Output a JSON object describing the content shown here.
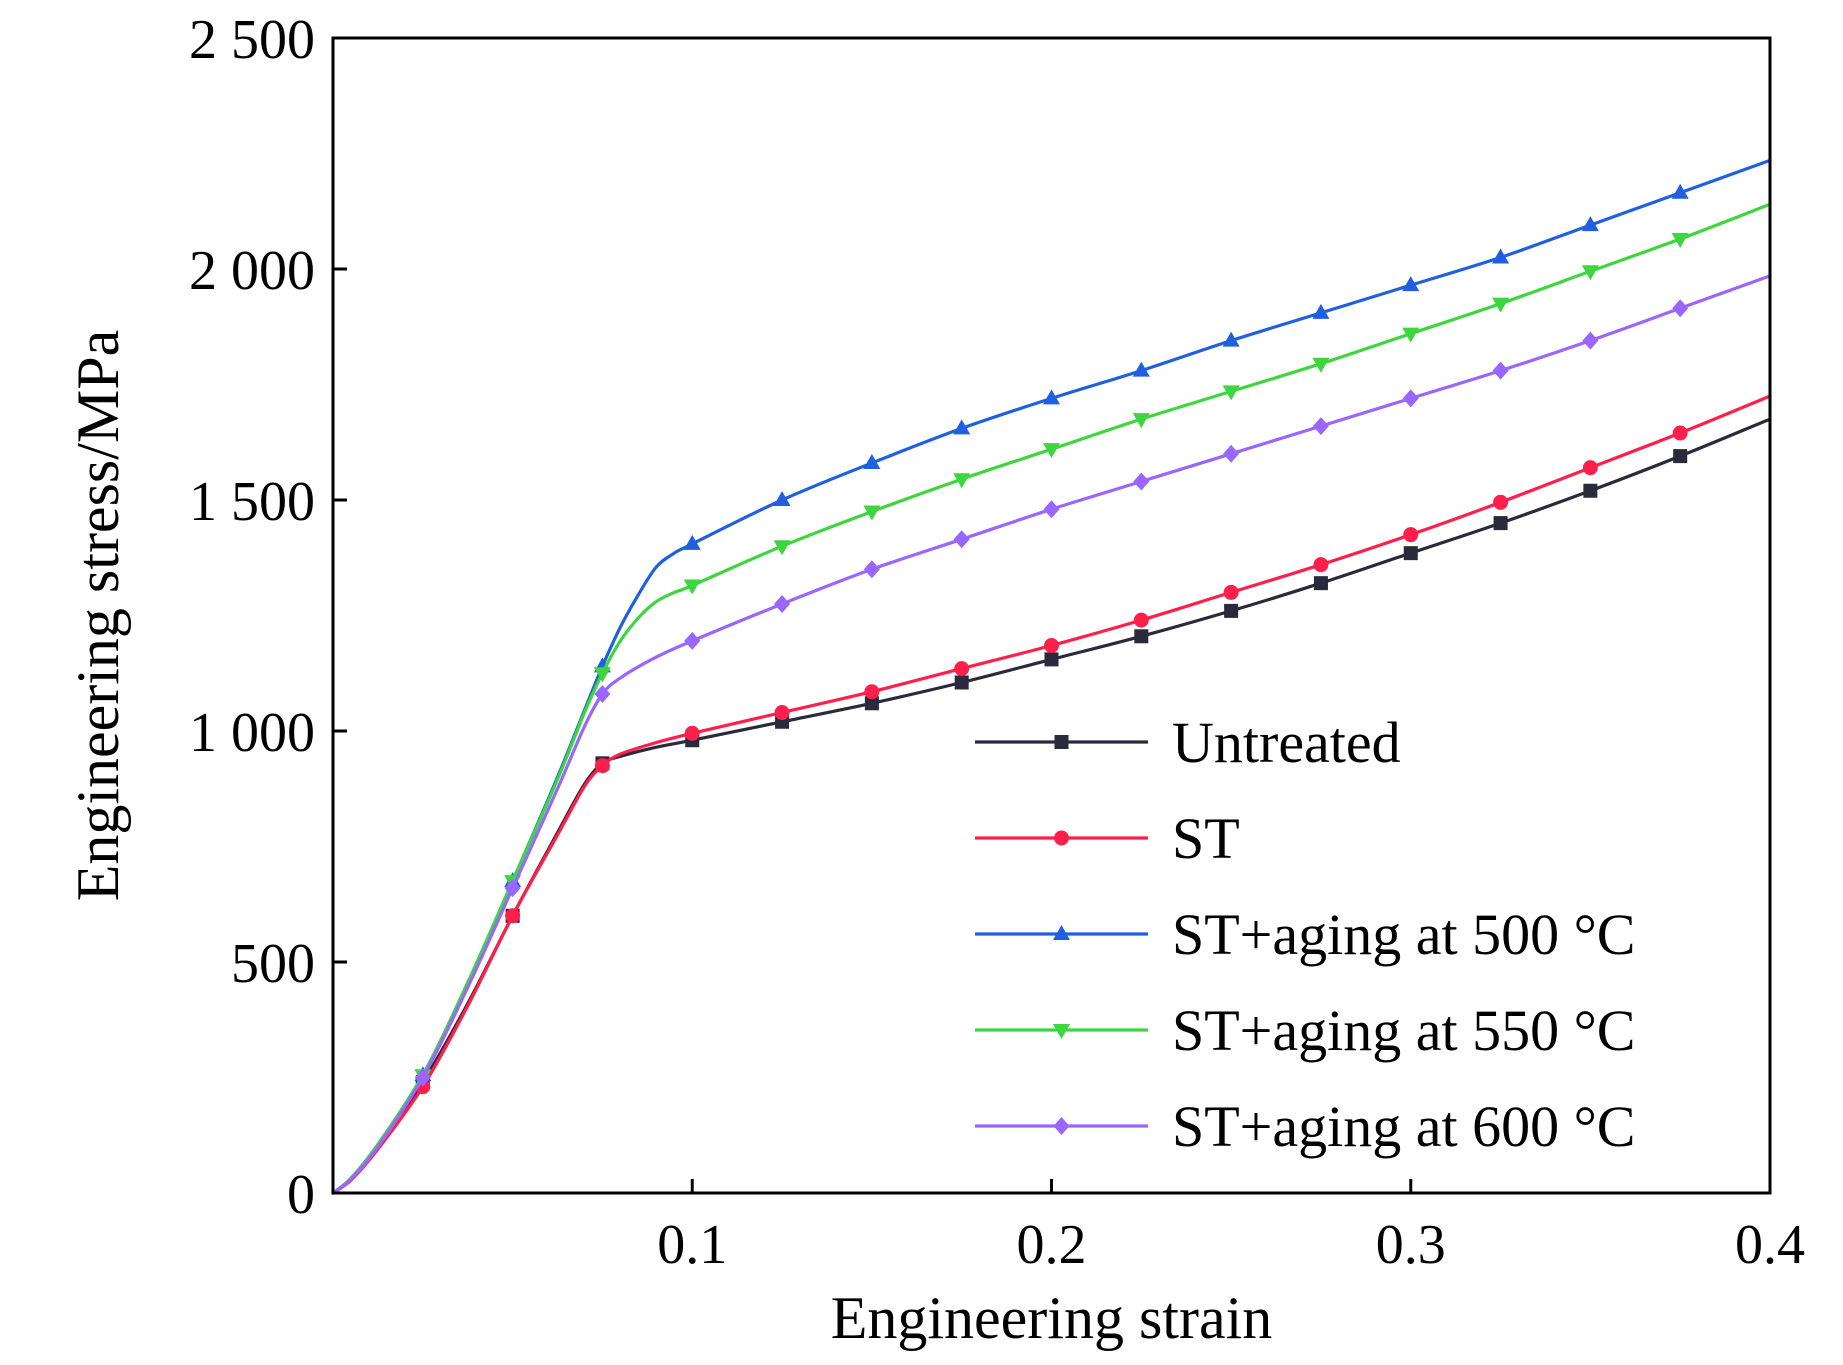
{
  "chart_data": {
    "type": "line",
    "title": "",
    "xlabel": "Engineering strain",
    "ylabel": "Engineering stress/MPa",
    "xlim": [
      0,
      0.4
    ],
    "ylim": [
      0,
      2500
    ],
    "xticks": [
      0.1,
      0.2,
      0.3,
      0.4
    ],
    "xtick_labels": [
      "0.1",
      "0.2",
      "0.3",
      "0.4"
    ],
    "yticks": [
      0,
      500,
      1000,
      1500,
      2000,
      2500
    ],
    "ytick_labels": [
      "0",
      "500",
      "1 000",
      "1 500",
      "2 000",
      "2 500"
    ],
    "grid": false,
    "legend_position": "bottom-right",
    "series": [
      {
        "name": "Untreated",
        "color": "#2a2a3c",
        "marker": "square",
        "curve": [
          [
            0,
            0
          ],
          [
            0.005,
            30
          ],
          [
            0.0125,
            100
          ],
          [
            0.025,
            240
          ],
          [
            0.0375,
            410
          ],
          [
            0.05,
            600
          ],
          [
            0.0625,
            780
          ],
          [
            0.07,
            885
          ],
          [
            0.075,
            930
          ],
          [
            0.08,
            945
          ],
          [
            0.09,
            965
          ],
          [
            0.1,
            980
          ],
          [
            0.125,
            1020
          ],
          [
            0.15,
            1060
          ],
          [
            0.175,
            1105
          ],
          [
            0.2,
            1155
          ],
          [
            0.225,
            1205
          ],
          [
            0.25,
            1260
          ],
          [
            0.275,
            1320
          ],
          [
            0.3,
            1385
          ],
          [
            0.325,
            1450
          ],
          [
            0.35,
            1520
          ],
          [
            0.375,
            1595
          ],
          [
            0.4,
            1675
          ]
        ],
        "markers": [
          [
            0.025,
            240
          ],
          [
            0.05,
            600
          ],
          [
            0.075,
            930
          ],
          [
            0.1,
            980
          ],
          [
            0.125,
            1020
          ],
          [
            0.15,
            1060
          ],
          [
            0.175,
            1105
          ],
          [
            0.2,
            1155
          ],
          [
            0.225,
            1205
          ],
          [
            0.25,
            1260
          ],
          [
            0.275,
            1320
          ],
          [
            0.3,
            1385
          ],
          [
            0.325,
            1450
          ],
          [
            0.35,
            1520
          ],
          [
            0.375,
            1595
          ]
        ]
      },
      {
        "name": "ST",
        "color": "#ff1f4b",
        "marker": "circle",
        "curve": [
          [
            0,
            0
          ],
          [
            0.005,
            28
          ],
          [
            0.0125,
            95
          ],
          [
            0.025,
            230
          ],
          [
            0.0375,
            405
          ],
          [
            0.05,
            600
          ],
          [
            0.0625,
            775
          ],
          [
            0.07,
            880
          ],
          [
            0.075,
            925
          ],
          [
            0.08,
            950
          ],
          [
            0.09,
            975
          ],
          [
            0.1,
            995
          ],
          [
            0.125,
            1040
          ],
          [
            0.15,
            1085
          ],
          [
            0.175,
            1135
          ],
          [
            0.2,
            1185
          ],
          [
            0.225,
            1240
          ],
          [
            0.25,
            1300
          ],
          [
            0.275,
            1360
          ],
          [
            0.3,
            1425
          ],
          [
            0.325,
            1495
          ],
          [
            0.35,
            1570
          ],
          [
            0.375,
            1645
          ],
          [
            0.4,
            1725
          ]
        ],
        "markers": [
          [
            0.025,
            230
          ],
          [
            0.05,
            600
          ],
          [
            0.075,
            925
          ],
          [
            0.1,
            995
          ],
          [
            0.125,
            1040
          ],
          [
            0.15,
            1085
          ],
          [
            0.175,
            1135
          ],
          [
            0.2,
            1185
          ],
          [
            0.225,
            1240
          ],
          [
            0.25,
            1300
          ],
          [
            0.275,
            1360
          ],
          [
            0.3,
            1425
          ],
          [
            0.325,
            1495
          ],
          [
            0.35,
            1570
          ],
          [
            0.375,
            1645
          ]
        ]
      },
      {
        "name": "ST+aging at 500 °C",
        "color": "#1f5fe0",
        "marker": "triangle-up",
        "curve": [
          [
            0,
            0
          ],
          [
            0.005,
            32
          ],
          [
            0.0125,
            105
          ],
          [
            0.025,
            255
          ],
          [
            0.0375,
            455
          ],
          [
            0.05,
            675
          ],
          [
            0.0625,
            900
          ],
          [
            0.07,
            1045
          ],
          [
            0.075,
            1140
          ],
          [
            0.08,
            1225
          ],
          [
            0.085,
            1295
          ],
          [
            0.09,
            1355
          ],
          [
            0.095,
            1385
          ],
          [
            0.1,
            1405
          ],
          [
            0.125,
            1500
          ],
          [
            0.15,
            1580
          ],
          [
            0.175,
            1655
          ],
          [
            0.2,
            1720
          ],
          [
            0.225,
            1780
          ],
          [
            0.25,
            1845
          ],
          [
            0.275,
            1905
          ],
          [
            0.3,
            1965
          ],
          [
            0.325,
            2025
          ],
          [
            0.35,
            2095
          ],
          [
            0.375,
            2165
          ],
          [
            0.4,
            2235
          ]
        ],
        "markers": [
          [
            0.025,
            255
          ],
          [
            0.05,
            675
          ],
          [
            0.075,
            1140
          ],
          [
            0.1,
            1405
          ],
          [
            0.125,
            1500
          ],
          [
            0.15,
            1580
          ],
          [
            0.175,
            1655
          ],
          [
            0.2,
            1720
          ],
          [
            0.225,
            1780
          ],
          [
            0.25,
            1845
          ],
          [
            0.275,
            1905
          ],
          [
            0.3,
            1965
          ],
          [
            0.325,
            2025
          ],
          [
            0.35,
            2095
          ],
          [
            0.375,
            2165
          ]
        ]
      },
      {
        "name": "ST+aging at 550 °C",
        "color": "#3ed63e",
        "marker": "triangle-down",
        "curve": [
          [
            0,
            0
          ],
          [
            0.005,
            32
          ],
          [
            0.0125,
            105
          ],
          [
            0.025,
            255
          ],
          [
            0.0375,
            455
          ],
          [
            0.05,
            675
          ],
          [
            0.0625,
            895
          ],
          [
            0.07,
            1040
          ],
          [
            0.075,
            1125
          ],
          [
            0.08,
            1195
          ],
          [
            0.085,
            1245
          ],
          [
            0.09,
            1280
          ],
          [
            0.095,
            1300
          ],
          [
            0.1,
            1315
          ],
          [
            0.125,
            1400
          ],
          [
            0.15,
            1475
          ],
          [
            0.175,
            1545
          ],
          [
            0.2,
            1610
          ],
          [
            0.225,
            1675
          ],
          [
            0.25,
            1735
          ],
          [
            0.275,
            1795
          ],
          [
            0.3,
            1860
          ],
          [
            0.325,
            1925
          ],
          [
            0.35,
            1995
          ],
          [
            0.375,
            2065
          ],
          [
            0.4,
            2140
          ]
        ],
        "markers": [
          [
            0.025,
            255
          ],
          [
            0.05,
            675
          ],
          [
            0.075,
            1125
          ],
          [
            0.1,
            1315
          ],
          [
            0.125,
            1400
          ],
          [
            0.15,
            1475
          ],
          [
            0.175,
            1545
          ],
          [
            0.2,
            1610
          ],
          [
            0.225,
            1675
          ],
          [
            0.25,
            1735
          ],
          [
            0.275,
            1795
          ],
          [
            0.3,
            1860
          ],
          [
            0.325,
            1925
          ],
          [
            0.35,
            1995
          ],
          [
            0.375,
            2065
          ]
        ]
      },
      {
        "name": "ST+aging at 600 °C",
        "color": "#9966ff",
        "marker": "diamond",
        "curve": [
          [
            0,
            0
          ],
          [
            0.005,
            30
          ],
          [
            0.0125,
            100
          ],
          [
            0.025,
            250
          ],
          [
            0.0375,
            445
          ],
          [
            0.05,
            660
          ],
          [
            0.0625,
            875
          ],
          [
            0.07,
            1010
          ],
          [
            0.075,
            1080
          ],
          [
            0.08,
            1115
          ],
          [
            0.09,
            1160
          ],
          [
            0.1,
            1195
          ],
          [
            0.125,
            1275
          ],
          [
            0.15,
            1350
          ],
          [
            0.175,
            1415
          ],
          [
            0.2,
            1480
          ],
          [
            0.225,
            1540
          ],
          [
            0.25,
            1600
          ],
          [
            0.275,
            1660
          ],
          [
            0.3,
            1720
          ],
          [
            0.325,
            1780
          ],
          [
            0.35,
            1845
          ],
          [
            0.375,
            1915
          ],
          [
            0.4,
            1985
          ]
        ],
        "markers": [
          [
            0.025,
            250
          ],
          [
            0.05,
            660
          ],
          [
            0.075,
            1080
          ],
          [
            0.1,
            1195
          ],
          [
            0.125,
            1275
          ],
          [
            0.15,
            1350
          ],
          [
            0.175,
            1415
          ],
          [
            0.2,
            1480
          ],
          [
            0.225,
            1540
          ],
          [
            0.25,
            1600
          ],
          [
            0.275,
            1660
          ],
          [
            0.3,
            1720
          ],
          [
            0.325,
            1780
          ],
          [
            0.35,
            1845
          ],
          [
            0.375,
            1915
          ]
        ]
      }
    ]
  }
}
